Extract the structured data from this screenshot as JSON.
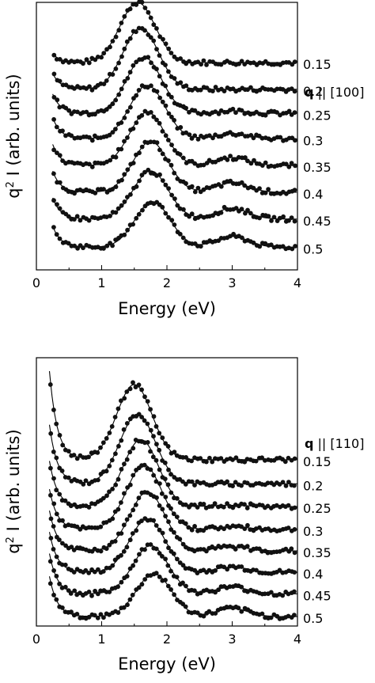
{
  "chart_data": [
    {
      "type": "scatter",
      "panel": "top",
      "xlabel": "Energy (eV)",
      "ylabel_prefix": "q",
      "ylabel_sup": "2",
      "ylabel_rest": " I (arb. units)",
      "xlim": [
        0,
        4
      ],
      "xticks": [
        "0",
        "1",
        "2",
        "3",
        "4"
      ],
      "legend_bold": "q",
      "legend_rest": " || [100]",
      "series": [
        {
          "name": "0.15",
          "baseline": 0.775,
          "peak_x": 1.55,
          "peak_h": 0.225,
          "low_rise": 0.05,
          "tail": 0.0
        },
        {
          "name": "0.2",
          "baseline": 0.675,
          "peak_x": 1.6,
          "peak_h": 0.23,
          "low_rise": 0.09,
          "tail": 0.0
        },
        {
          "name": "0.25",
          "baseline": 0.585,
          "peak_x": 1.65,
          "peak_h": 0.21,
          "low_rise": 0.11,
          "tail": 0.01
        },
        {
          "name": "0.3",
          "baseline": 0.49,
          "peak_x": 1.7,
          "peak_h": 0.2,
          "low_rise": 0.12,
          "tail": 0.02
        },
        {
          "name": "0.35",
          "baseline": 0.39,
          "peak_x": 1.7,
          "peak_h": 0.2,
          "low_rise": 0.12,
          "tail": 0.03
        },
        {
          "name": "0.4",
          "baseline": 0.29,
          "peak_x": 1.75,
          "peak_h": 0.19,
          "low_rise": 0.12,
          "tail": 0.035
        },
        {
          "name": "0.45",
          "baseline": 0.19,
          "peak_x": 1.75,
          "peak_h": 0.18,
          "low_rise": 0.12,
          "tail": 0.04
        },
        {
          "name": "0.5",
          "baseline": 0.085,
          "peak_x": 1.78,
          "peak_h": 0.17,
          "low_rise": 0.12,
          "tail": 0.04
        }
      ]
    },
    {
      "type": "scatter",
      "panel": "bottom",
      "xlabel": "Energy (eV)",
      "ylabel_prefix": "q",
      "ylabel_sup": "2",
      "ylabel_rest": " I (arb. units)",
      "xlim": [
        0,
        4
      ],
      "xticks": [
        "0",
        "1",
        "2",
        "3",
        "4"
      ],
      "legend_bold": "q",
      "legend_rest": " || [110]",
      "series": [
        {
          "name": "0.15",
          "baseline": 0.62,
          "peak_x": 1.5,
          "peak_h": 0.28,
          "low_rise": 0.33,
          "tail": 0.0
        },
        {
          "name": "0.2",
          "baseline": 0.53,
          "peak_x": 1.55,
          "peak_h": 0.26,
          "low_rise": 0.22,
          "tail": 0.0
        },
        {
          "name": "0.25",
          "baseline": 0.445,
          "peak_x": 1.6,
          "peak_h": 0.25,
          "low_rise": 0.17,
          "tail": 0.005
        },
        {
          "name": "0.3",
          "baseline": 0.36,
          "peak_x": 1.65,
          "peak_h": 0.24,
          "low_rise": 0.15,
          "tail": 0.01
        },
        {
          "name": "0.35",
          "baseline": 0.28,
          "peak_x": 1.7,
          "peak_h": 0.22,
          "low_rise": 0.15,
          "tail": 0.015
        },
        {
          "name": "0.4",
          "baseline": 0.2,
          "peak_x": 1.7,
          "peak_h": 0.2,
          "low_rise": 0.15,
          "tail": 0.02
        },
        {
          "name": "0.45",
          "baseline": 0.12,
          "peak_x": 1.75,
          "peak_h": 0.18,
          "low_rise": 0.15,
          "tail": 0.025
        },
        {
          "name": "0.5",
          "baseline": 0.035,
          "peak_x": 1.8,
          "peak_h": 0.16,
          "low_rise": 0.15,
          "tail": 0.03
        }
      ]
    }
  ]
}
